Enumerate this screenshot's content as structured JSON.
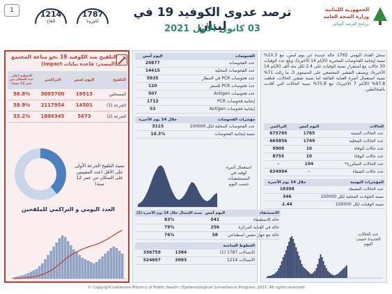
{
  "header": {
    "page_number": "1",
    "title": "ترصد عدوى الكوفيد 19 في لبنان",
    "date": "03 كانون الأول 2021",
    "ministry_line1": "الجمهورية اللبنانية",
    "ministry_line2": "وزارة الصحة العامة",
    "ministry_line3": "برنامج الترصد الوبائي",
    "hotline1": {
      "number": "1787",
      "label": "لكورونا"
    },
    "hotline2": {
      "number": "1214",
      "label": "للقاح"
    }
  },
  "narrative": "سجل العداد اليومي 1765 حالة جديدة عن يوم امس، مع 10.3% نسبة إيجابية الفحوصات المخبرية (الأيام 14 الأخيرة)، وبلغ عدد الوفيات 10 حالات مع استقرار نسبة الوفيات على 2.4 لكل مئة ألف (الأيام 14 الأخيرة)، ويصنف التفشي المجتمعي على المستوى 3. ما زالت 71% نسبة استعمال أسرة العناية الفائقة اما نسبة تفشي الحالات، فبلغت 97.8% (الأيام 7 الأخيرة)، مع 75.8% نسبة الحالات التي أفادت بالمخالطين.",
  "cases": {
    "section_title": "الحالات",
    "col_today": "اليوم أمس",
    "col_total": "التراكمي",
    "rows": [
      {
        "label": "عدد الحالات المثبتة",
        "today": "1765",
        "total": "675765"
      },
      {
        "label": "عدد الحالات المحلية",
        "today": "1749",
        "total": "665856"
      },
      {
        "label": "عدد حالات الوفاة",
        "today": "10",
        "total": "9909"
      },
      {
        "label": "عدد حالات الوفاة",
        "today": "10",
        "total": "8755"
      },
      {
        "label": "عدد الحالات المتكررة*",
        "today": "104",
        "total": "-"
      },
      {
        "label": "عدد حالات الشفاء",
        "today": "-",
        "total": "634994"
      }
    ]
  },
  "indicators": {
    "section_title": "المؤشرات اليومية",
    "col": "خلال 14 يوم الأخيرة",
    "rows": [
      {
        "label": "عدد الحالات النشطة",
        "value": "18398"
      },
      {
        "label": "نسبة الحوادث المحلية لكل 100000",
        "value": "346"
      },
      {
        "label": "نسبة الوفيات لكل 100000",
        "value": "2.44"
      }
    ]
  },
  "epi_chart_label": "عدد الحالات الجديدة حسب اليوم",
  "tests": {
    "section_title": "الفحوصات",
    "col_today": "اليوم أمس",
    "rows": [
      {
        "label": "عدد الفحوصات",
        "value": "20877"
      },
      {
        "label": "عدد الفحوصات المحلية",
        "value": "14415"
      },
      {
        "label": "عدد فحوصات PCR في المطار",
        "value": "5835"
      },
      {
        "label": "عدد فحوصات PCR للسفر",
        "value": "120"
      },
      {
        "label": "عدد فحوصات Antigen",
        "value": "507"
      },
      {
        "label": "إيجابية فحوصات PCR",
        "value": "1712"
      },
      {
        "label": "إيجابية فحوصات Antigen",
        "value": "53"
      }
    ],
    "sub_title": "مؤشرات الفحوصات",
    "sub_col": "خلال 14 يوم الأخيرة",
    "sub_rows": [
      {
        "label": "عدد الفحوصات المحلية لكل 100000",
        "value": "3115"
      },
      {
        "label": "نسبة إيجابية الفحوصات",
        "value": "10.3%"
      }
    ],
    "chart_label": "استعمال أسرة كوفيد في المستشفيات حسب اليوم"
  },
  "hospital": {
    "section_title": "الاستشفاء",
    "col_today": "اليوم أمس",
    "col_rate": "نسبة الإشغال خلال 14 يوم الأخيرة (2)",
    "rows": [
      {
        "label": "حالة الاستشفاء",
        "value": "541",
        "rate": "83%"
      },
      {
        "label": "حالة في العناية المركزة",
        "value": "256",
        "rate": "79%"
      },
      {
        "label": "حالة مع جهاز تنفس اصطناعي",
        "value": "58",
        "rate": "76%"
      }
    ],
    "hotline_title": "الخطوط الساخنة",
    "hotline_rows": [
      {
        "label": "الاتصالات 1787 (1)",
        "today": "1384",
        "total": "336759"
      },
      {
        "label": "الاتصالات 1214",
        "today": "3093",
        "total": "524697"
      }
    ]
  },
  "vaccination": {
    "title": "التلقيح ضد الكوفيد 19 نحو مناعة المجتمع",
    "source": "(المصدر: قاعدة بيانات Impact)",
    "col_vax": "التلقيح",
    "col_today": "اليوم امس",
    "col_total": "التراكمي",
    "col_coverage": "التغطية (على عدد السكان من عمر 12 سنة)",
    "rows": [
      {
        "label": "المسجلين",
        "today": "19513",
        "total": "3093700",
        "pct": "56.8%"
      },
      {
        "label": "الجرعة (1)",
        "today": "14501",
        "total": "2117954",
        "pct": "38.9%"
      },
      {
        "label": "الجرعة (2)",
        "today": "5673",
        "total": "1809345",
        "pct": "33.2%"
      }
    ],
    "donut_label": "نسبة التلقيح الجرعة الأولى على الأقل (عدد المقيمين على السكان من عمر 12 سنة)",
    "bar_title": "العدد اليومي و التراكمي للملقحين"
  },
  "colors": {
    "navy": "#1e2a4a",
    "red": "#c0392b",
    "panel_bg": "#eef1f6",
    "chart_dark": "#2c3e66",
    "donut_blue": "#4a7fc0"
  },
  "footer": "© Copyright Lebanese Ministry of Public Health / Epidemiological Surveillance Program, 2021. All rights reserved"
}
